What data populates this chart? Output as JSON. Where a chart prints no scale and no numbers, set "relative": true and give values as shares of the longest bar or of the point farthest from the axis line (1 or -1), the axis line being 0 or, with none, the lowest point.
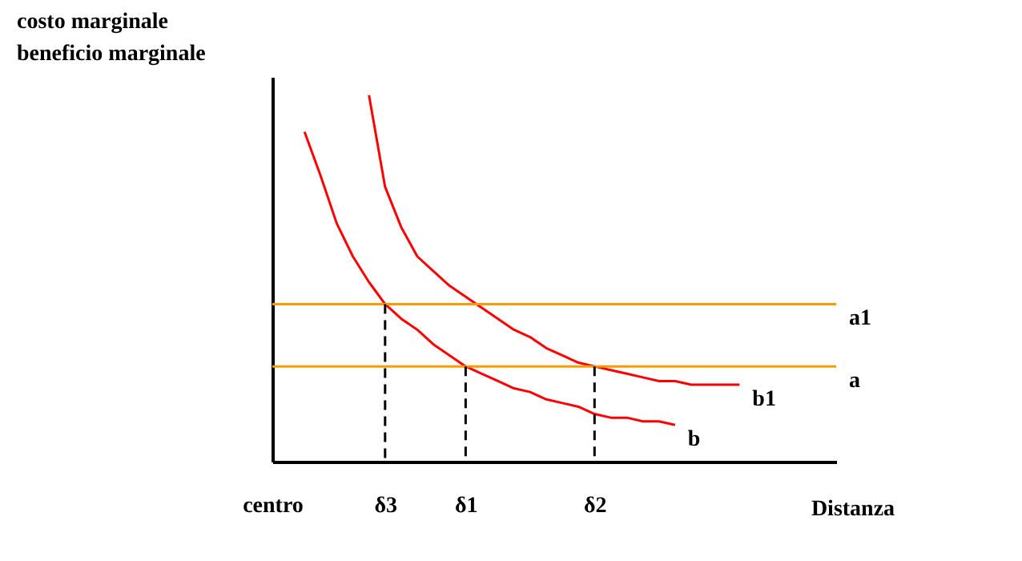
{
  "chart_data": {
    "type": "line",
    "relative": true,
    "ylabel": "costo marginale\nbeneficio marginale",
    "xlabel": "Distanza",
    "categories": [
      "centro",
      null,
      null,
      null,
      null,
      null,
      null,
      "δ3",
      null,
      null,
      null,
      null,
      "δ1",
      null,
      null,
      null,
      null,
      null,
      null,
      null,
      "δ2",
      null,
      null,
      null,
      null,
      null,
      null,
      null,
      null,
      null,
      null,
      null,
      null,
      null,
      null,
      null
    ],
    "series": [
      {
        "name": "b",
        "color": "#ff0000",
        "values": [
          null,
          null,
          0.9,
          0.78,
          0.65,
          0.56,
          0.49,
          0.43,
          0.39,
          0.36,
          0.32,
          0.29,
          0.26,
          0.24,
          0.22,
          0.2,
          0.19,
          0.17,
          0.16,
          0.15,
          0.13,
          0.12,
          0.12,
          0.11,
          0.11,
          0.1,
          null,
          null,
          null,
          null,
          null,
          null,
          null,
          null,
          null,
          null
        ]
      },
      {
        "name": "b1",
        "color": "#ff0000",
        "values": [
          null,
          null,
          null,
          null,
          null,
          null,
          1,
          0.75,
          0.64,
          0.56,
          0.52,
          0.48,
          0.45,
          0.42,
          0.39,
          0.36,
          0.34,
          0.31,
          0.29,
          0.27,
          0.26,
          0.25,
          0.24,
          0.23,
          0.22,
          0.22,
          0.21,
          0.21,
          0.21,
          0.21,
          null,
          null,
          null,
          null,
          null,
          null
        ]
      },
      {
        "name": "a1",
        "color": "#ff9900",
        "values": [
          0.43,
          0.43,
          0.43,
          0.43,
          0.43,
          0.43,
          0.43,
          0.43,
          0.43,
          0.43,
          0.43,
          0.43,
          0.43,
          0.43,
          0.43,
          0.43,
          0.43,
          0.43,
          0.43,
          0.43,
          0.43,
          0.43,
          0.43,
          0.43,
          0.43,
          0.43,
          0.43,
          0.43,
          0.43,
          0.43,
          0.43,
          0.43,
          0.43,
          0.43,
          0.43,
          0.43
        ]
      },
      {
        "name": "a",
        "color": "#ff9900",
        "values": [
          0.26,
          0.26,
          0.26,
          0.26,
          0.26,
          0.26,
          0.26,
          0.26,
          0.26,
          0.26,
          0.26,
          0.26,
          0.26,
          0.26,
          0.26,
          0.26,
          0.26,
          0.26,
          0.26,
          0.26,
          0.26,
          0.26,
          0.26,
          0.26,
          0.26,
          0.26,
          0.26,
          0.26,
          0.26,
          0.26,
          0.26,
          0.26,
          0.26,
          0.26,
          0.26,
          0.26
        ]
      },
      {
        "color": "#000000",
        "line_style": "dashed",
        "x": [
          "δ3",
          "δ3"
        ],
        "values": [
          0,
          0.43
        ]
      },
      {
        "color": "#000000",
        "line_style": "dashed",
        "x": [
          "δ1",
          "δ1"
        ],
        "values": [
          0,
          0.26
        ]
      },
      {
        "color": "#000000",
        "line_style": "dashed",
        "x": [
          "δ2",
          "δ2"
        ],
        "values": [
          0,
          0.26
        ]
      }
    ]
  }
}
